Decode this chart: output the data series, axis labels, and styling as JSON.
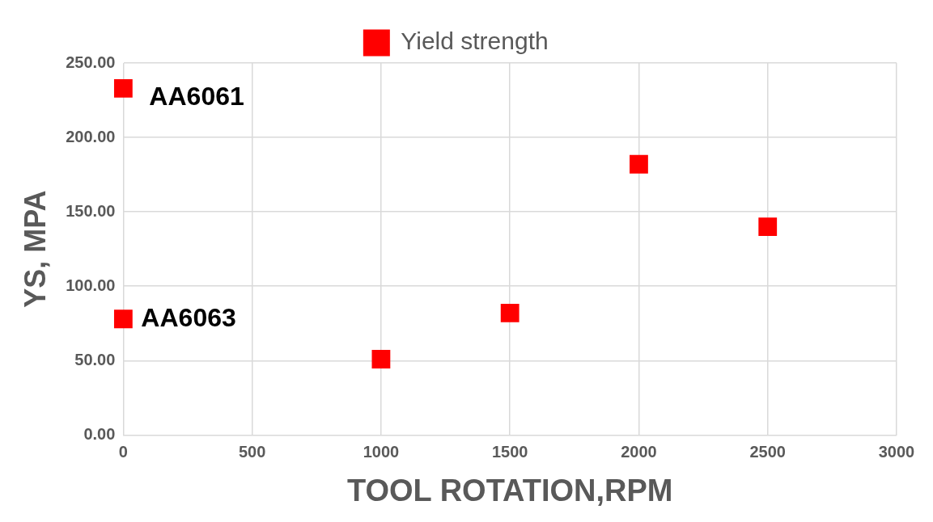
{
  "chart_data": {
    "type": "scatter",
    "xlabel": "TOOL ROTATION,RPM",
    "ylabel": "YS, MPA",
    "series": [
      {
        "name": "Yield strength",
        "color": "#ff0000",
        "x": [
          0,
          0,
          1000,
          1500,
          2000,
          2500
        ],
        "values": [
          233,
          78,
          51,
          82,
          182,
          140
        ]
      }
    ],
    "xlim": [
      0,
      3000
    ],
    "xticks": [
      0,
      500,
      1000,
      1500,
      2000,
      2500,
      3000
    ],
    "ylim": [
      0,
      250
    ],
    "yticks": [
      {
        "value": 0,
        "label": "0.00"
      },
      {
        "value": 50,
        "label": "50.00"
      },
      {
        "value": 100,
        "label": "100.00"
      },
      {
        "value": 150,
        "label": "150.00"
      },
      {
        "value": 200,
        "label": "200.00"
      },
      {
        "value": 250,
        "label": "250.00"
      }
    ],
    "annotations": [
      {
        "text": "AA6061",
        "x": 0,
        "y": 233
      },
      {
        "text": "AA6063",
        "x": 0,
        "y": 78
      }
    ],
    "grid": true,
    "legend": "top",
    "marker": "square"
  }
}
